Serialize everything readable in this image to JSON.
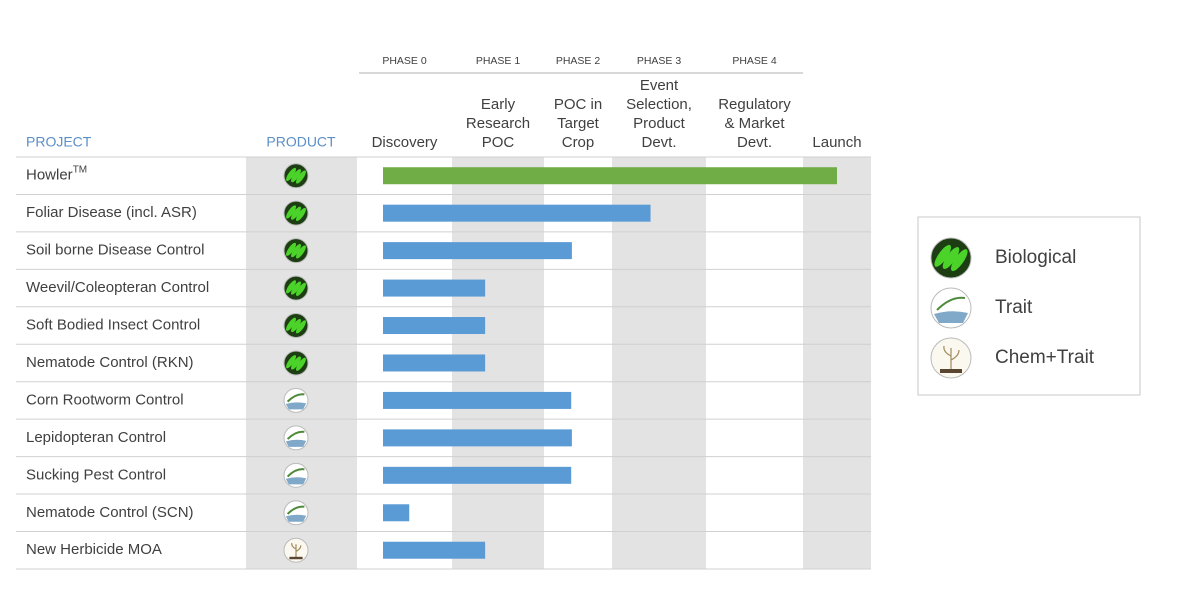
{
  "header": {
    "project": "PROJECT",
    "product": "PRODUCT"
  },
  "stages": [
    {
      "phase": "PHASE 0",
      "lines": [
        "Discovery"
      ]
    },
    {
      "phase": "PHASE 1",
      "lines": [
        "Early",
        "Research",
        "POC"
      ]
    },
    {
      "phase": "PHASE 2",
      "lines": [
        "POC in",
        "Target",
        "Crop"
      ]
    },
    {
      "phase": "PHASE 3",
      "lines": [
        "Event",
        "Selection,",
        "Product",
        "Devt."
      ]
    },
    {
      "phase": "PHASE 4",
      "lines": [
        "Regulatory",
        "& Market",
        "Devt."
      ]
    },
    {
      "lines": [
        "Launch"
      ]
    }
  ],
  "rows": [
    {
      "project": "Howler",
      "sup": "TM",
      "product": "Biological",
      "progress": 5.5,
      "color": "#70ad47"
    },
    {
      "project": "Foliar Disease (incl. ASR)",
      "product": "Biological",
      "progress": 3.41,
      "color": "#5b9bd5"
    },
    {
      "project": "Soil borne Disease Control",
      "product": "Biological",
      "progress": 2.41,
      "color": "#5b9bd5"
    },
    {
      "project": "Weevil/Coleopteran Control",
      "product": "Biological",
      "progress": 1.36,
      "color": "#5b9bd5"
    },
    {
      "project": "Soft Bodied Insect Control",
      "product": "Biological",
      "progress": 1.36,
      "color": "#5b9bd5"
    },
    {
      "project": "Nematode Control (RKN)",
      "product": "Biological",
      "progress": 1.36,
      "color": "#5b9bd5"
    },
    {
      "project": "Corn Rootworm Control",
      "product": "Trait",
      "progress": 2.4,
      "color": "#5b9bd5"
    },
    {
      "project": "Lepidopteran Control",
      "product": "Trait",
      "progress": 2.41,
      "color": "#5b9bd5"
    },
    {
      "project": "Sucking Pest Control",
      "product": "Trait",
      "progress": 2.4,
      "color": "#5b9bd5"
    },
    {
      "project": "Nematode Control (SCN)",
      "product": "Trait",
      "progress": 0.55,
      "color": "#5b9bd5"
    },
    {
      "project": "New Herbicide MOA",
      "product": "Chem+Trait",
      "progress": 1.36,
      "color": "#5b9bd5"
    }
  ],
  "legend": [
    {
      "label": "Biological"
    },
    {
      "label": "Trait"
    },
    {
      "label": "Chem+Trait"
    }
  ]
}
